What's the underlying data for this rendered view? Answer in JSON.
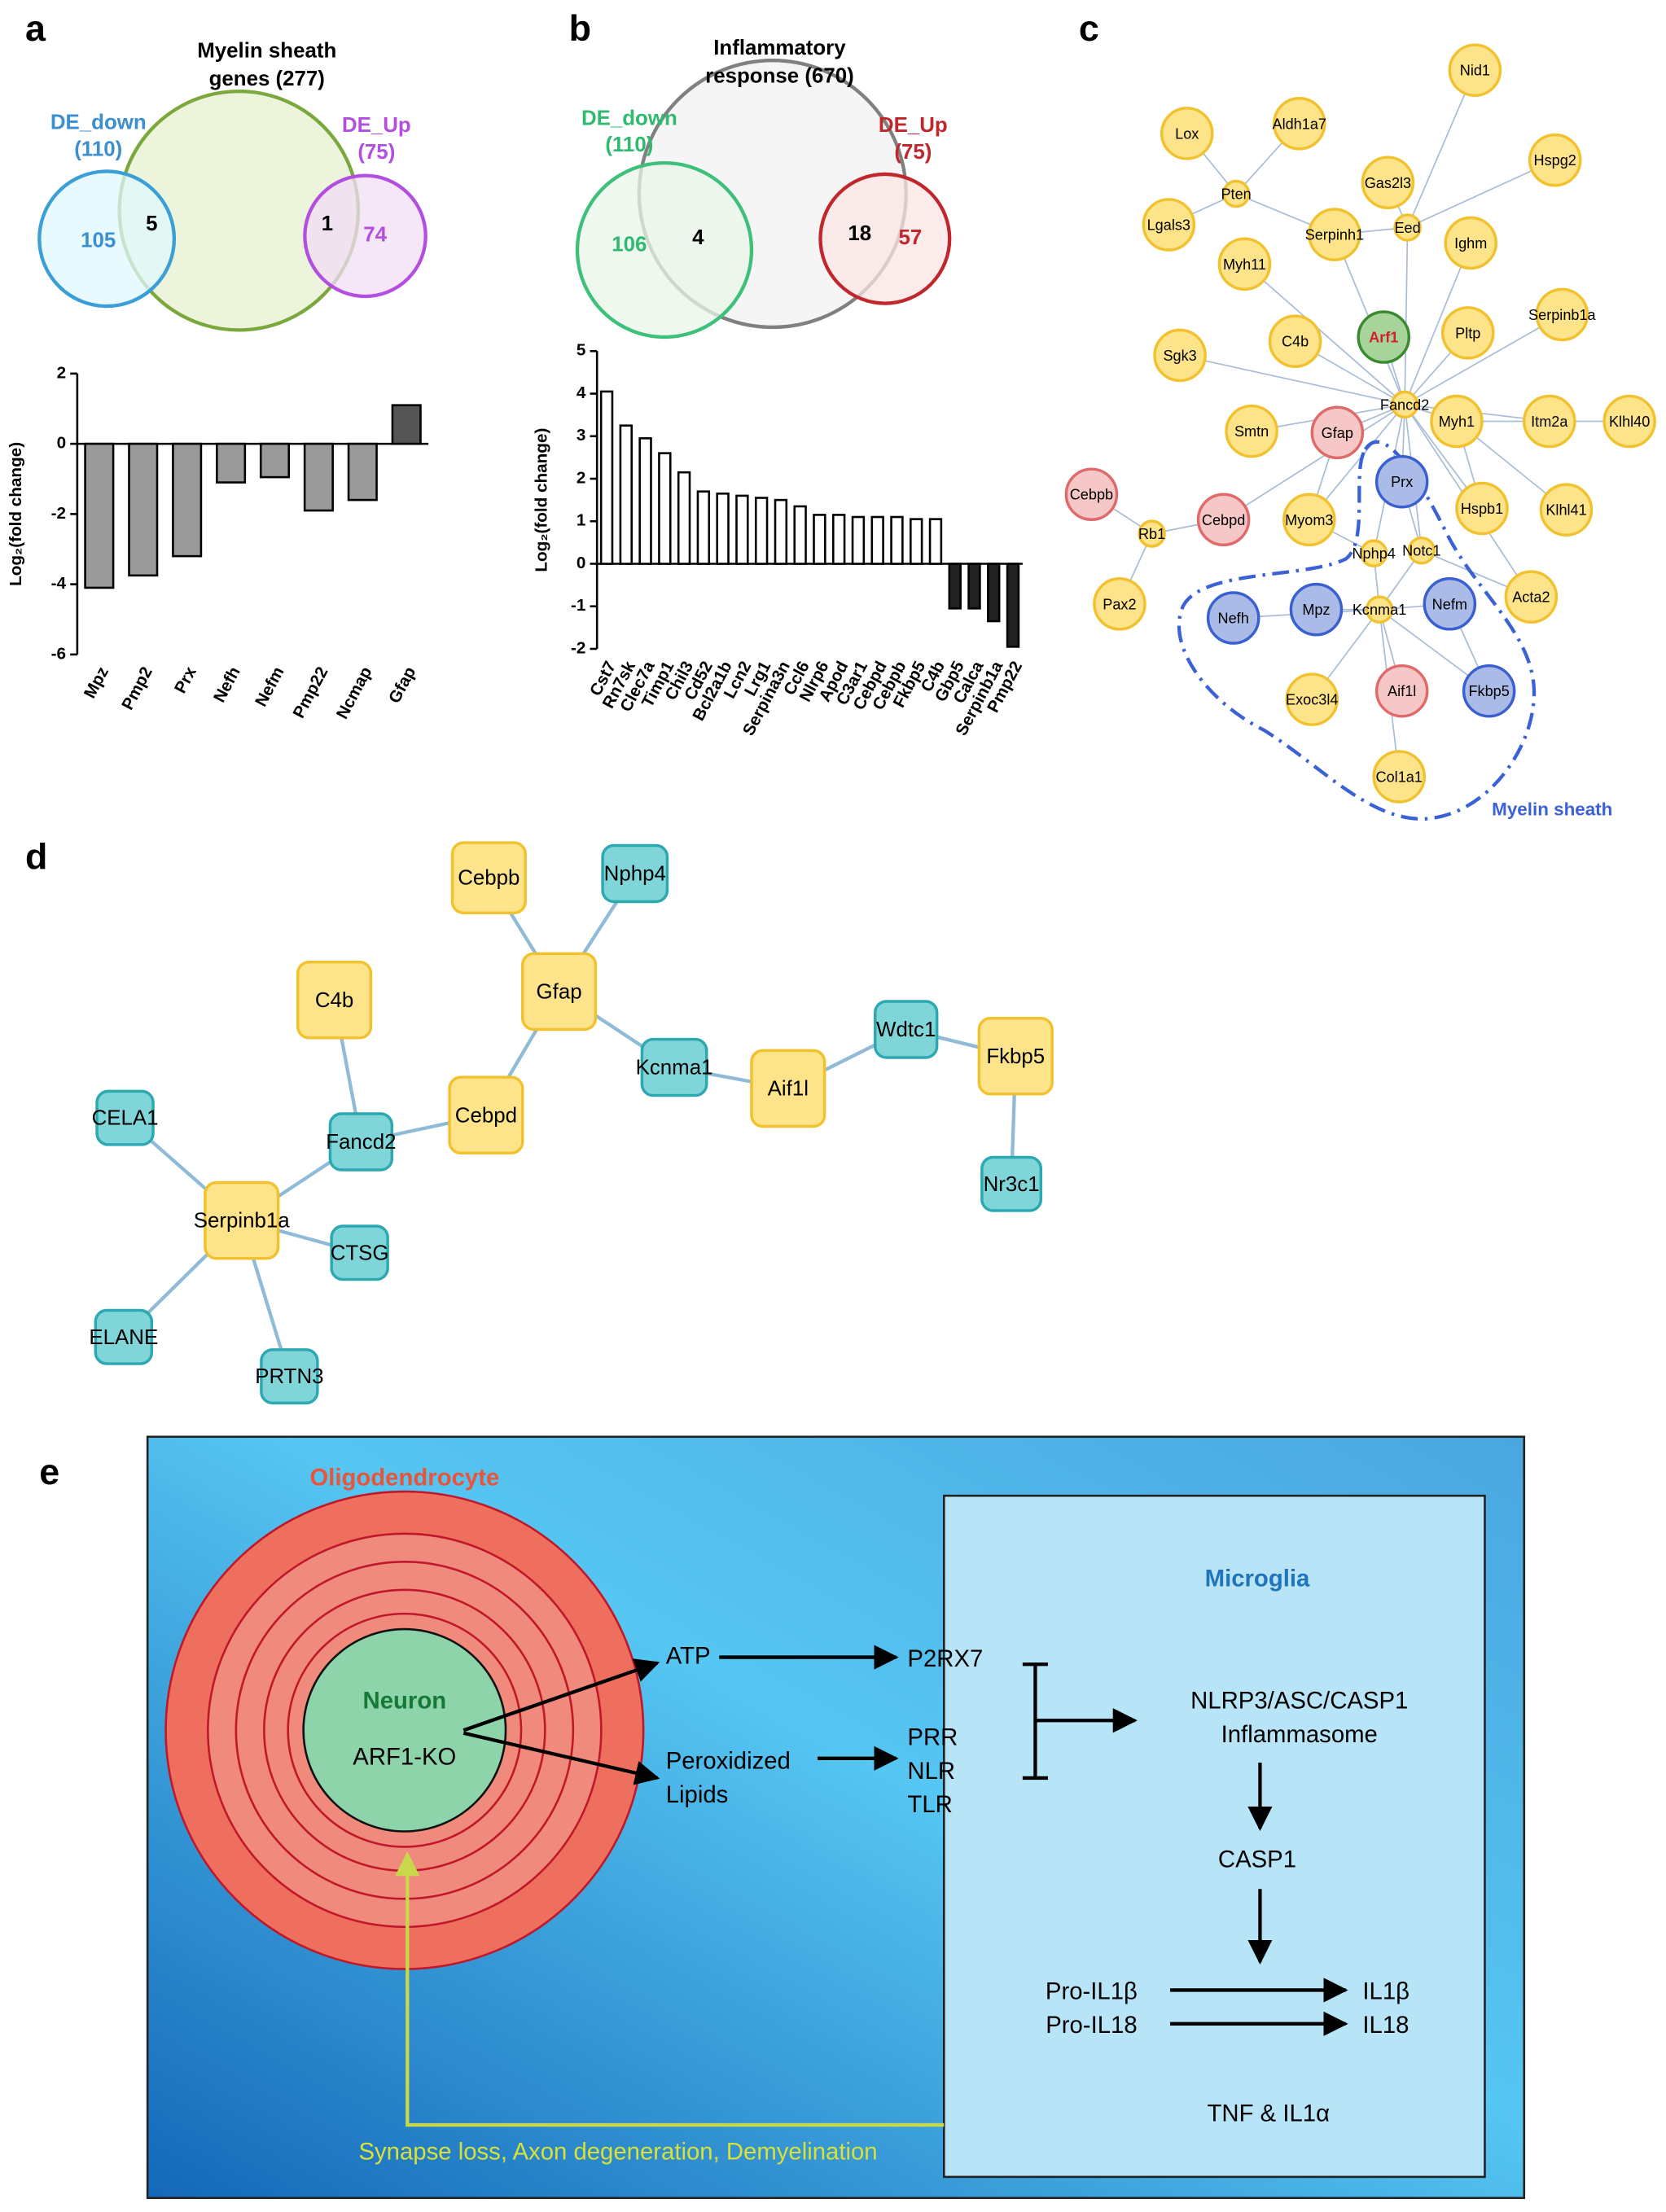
{
  "panel_labels": [
    "a",
    "b",
    "c",
    "d",
    "e"
  ],
  "chart_data": [
    {
      "type": "bar",
      "categories": [
        "Mpz",
        "Pmp2",
        "Prx",
        "Nefh",
        "Nefm",
        "Pmp22",
        "Ncmap",
        "Gfap"
      ],
      "values": [
        -4.1,
        -3.75,
        -3.2,
        -1.1,
        -0.95,
        -1.9,
        -1.6,
        1.1
      ],
      "colors": [
        "#9a9a9a",
        "#9a9a9a",
        "#9a9a9a",
        "#9a9a9a",
        "#9a9a9a",
        "#9a9a9a",
        "#9a9a9a",
        "#555555"
      ],
      "ylim": [
        -6,
        2
      ],
      "yticks": [
        -6,
        -4,
        -2,
        0,
        2
      ],
      "ylabel": "Log₂(fold change)"
    },
    {
      "type": "bar",
      "categories": [
        "Cst7",
        "Rn7sk",
        "Clec7a",
        "Timp1",
        "Chil3",
        "Cd52",
        "Bcl2a1b",
        "Lcn2",
        "Lrg1",
        "Serpina3n",
        "Ccl6",
        "Nlrp6",
        "Apod",
        "C3ar1",
        "Cebpd",
        "Cebpb",
        "Fkbp5",
        "C4b",
        "Gbp5",
        "Calca",
        "Serpinb1a",
        "Pmp22"
      ],
      "values": [
        4.05,
        3.25,
        2.95,
        2.6,
        2.15,
        1.7,
        1.65,
        1.6,
        1.55,
        1.5,
        1.35,
        1.15,
        1.15,
        1.1,
        1.1,
        1.1,
        1.05,
        1.05,
        -1.05,
        -1.05,
        -1.35,
        -1.95
      ],
      "colors": [
        "#ffffff",
        "#ffffff",
        "#ffffff",
        "#ffffff",
        "#ffffff",
        "#ffffff",
        "#ffffff",
        "#ffffff",
        "#ffffff",
        "#ffffff",
        "#ffffff",
        "#ffffff",
        "#ffffff",
        "#ffffff",
        "#ffffff",
        "#ffffff",
        "#ffffff",
        "#ffffff",
        "#222222",
        "#222222",
        "#222222",
        "#222222"
      ],
      "ylim": [
        -2,
        5
      ],
      "yticks": [
        -2,
        -1,
        0,
        1,
        2,
        3,
        4,
        5
      ],
      "ylabel": "Log₂(fold change)"
    }
  ],
  "venn": [
    {
      "title": [
        "Myelin sheath",
        "genes (277)"
      ],
      "left": [
        "DE_down",
        "(110)"
      ],
      "right": [
        "DE_Up",
        "(75)"
      ],
      "counts": [
        105,
        5,
        1,
        74
      ]
    },
    {
      "title": [
        "Inflammatory",
        "response (670)"
      ],
      "left": [
        "DE_down",
        "(110)"
      ],
      "right": [
        "DE_Up",
        "(75)"
      ],
      "counts": [
        106,
        4,
        18,
        57
      ]
    }
  ],
  "network_c": {
    "nodes": [
      "Nid1",
      "Lox",
      "Aldh1a7",
      "Gas2l3",
      "Hspg2",
      "Pten",
      "Lgals3",
      "Serpinh1",
      "Eed",
      "Ighm",
      "Myh11",
      "Serpinb1a",
      "C4b",
      "Arf1",
      "Pltp",
      "Sgk3",
      "Fancd2",
      "Smtn",
      "Gfap",
      "Myh1",
      "Itm2a",
      "Klhl40",
      "Prx",
      "Cebpb",
      "Rb1",
      "Cebpd",
      "Myom3",
      "Hspb1",
      "Klhl41",
      "Nphp4",
      "Notc1",
      "Pax2",
      "Nefh",
      "Mpz",
      "Kcnma1",
      "Nefm",
      "Acta2",
      "Exoc3l4",
      "Aif1l",
      "Fkbp5",
      "Col1a1"
    ],
    "label": "Myelin sheath"
  },
  "network_d": {
    "nodes": [
      "Cebpb",
      "Nphp4",
      "C4b",
      "Gfap",
      "Kcnma1",
      "Aif1l",
      "Wdtc1",
      "Fkbp5",
      "Nr3c1",
      "Cebpd",
      "Fancd2",
      "CELA1",
      "Serpinb1a",
      "CTSG",
      "ELANE",
      "PRTN3"
    ]
  },
  "diagram_e": {
    "oligodendrocyte": "Oligodendrocyte",
    "neuron": "Neuron",
    "ko": "ARF1-KO",
    "microglia": "Microglia",
    "atp": "ATP",
    "lipids": [
      "Peroxidized",
      "Lipids"
    ],
    "p2rx7": "P2RX7",
    "receptors": [
      "PRR",
      "NLR",
      "TLR"
    ],
    "inflammasome": [
      "NLRP3/ASC/CASP1",
      "Inflammasome"
    ],
    "casp1": "CASP1",
    "pro": [
      "Pro-IL1β",
      "Pro-IL18"
    ],
    "mature": [
      "IL1β",
      "IL18"
    ],
    "tnf": "TNF & IL1α",
    "effects": "Synapse loss, Axon degeneration, Demyelination"
  }
}
